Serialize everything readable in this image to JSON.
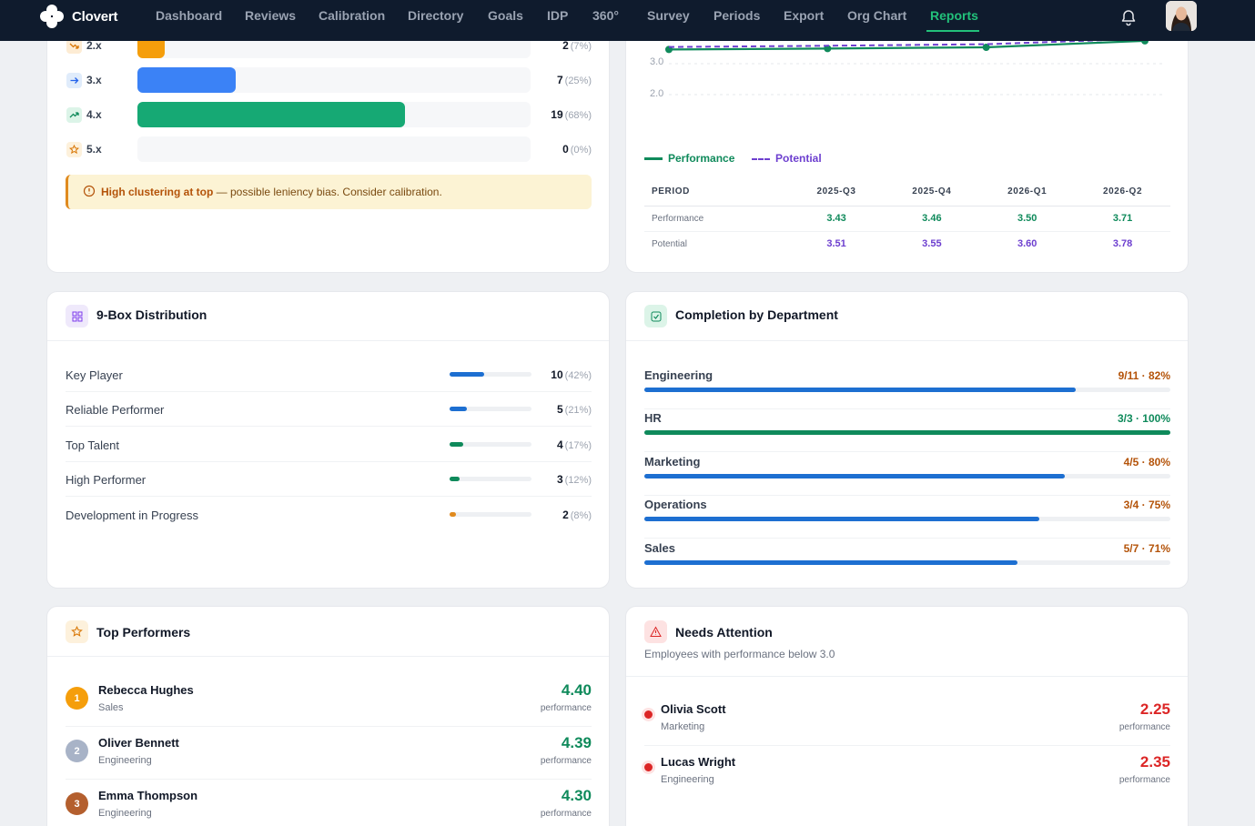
{
  "nav": {
    "brand": "Clovert",
    "items": [
      "Dashboard",
      "Reviews",
      "Calibration",
      "Directory",
      "Goals",
      "IDP",
      "360°",
      "Survey",
      "Periods",
      "Export",
      "Org Chart",
      "Reports"
    ],
    "active": "Reports"
  },
  "rating_distribution": {
    "rows": [
      {
        "label": "2.x",
        "count": "2",
        "pct": "(7%)",
        "fraction": 0.07,
        "color": "#f59e0b"
      },
      {
        "label": "3.x",
        "count": "7",
        "pct": "(25%)",
        "fraction": 0.25,
        "color": "#3b82f6"
      },
      {
        "label": "4.x",
        "count": "19",
        "pct": "(68%)",
        "fraction": 0.68,
        "color": "#16a974"
      },
      {
        "label": "5.x",
        "count": "0",
        "pct": "(0%)",
        "fraction": 0.0,
        "color": "#f59e0b"
      }
    ],
    "warning_bold": "High clustering at top",
    "warning_text": " — possible leniency bias. Consider calibration."
  },
  "trend": {
    "y_ticks": [
      "3.0",
      "2.0"
    ],
    "legend_performance": "Performance",
    "legend_potential": "Potential",
    "table_header": [
      "PERIOD",
      "2025-Q3",
      "2025-Q4",
      "2026-Q1",
      "2026-Q2"
    ],
    "row_performance_label": "Performance",
    "row_potential_label": "Potential",
    "performance": [
      "3.43",
      "3.46",
      "3.50",
      "3.71"
    ],
    "potential": [
      "3.51",
      "3.55",
      "3.60",
      "3.78"
    ]
  },
  "chart_data": {
    "type": "line",
    "x": [
      "2025-Q3",
      "2025-Q4",
      "2026-Q1",
      "2026-Q2"
    ],
    "series": [
      {
        "name": "Performance",
        "values": [
          3.43,
          3.46,
          3.5,
          3.71
        ]
      },
      {
        "name": "Potential",
        "values": [
          3.51,
          3.55,
          3.6,
          3.78
        ]
      }
    ],
    "y_ticks": [
      3.0,
      2.0
    ],
    "grid": true,
    "legend": "bottom-left"
  },
  "ninebox": {
    "title": "9-Box Distribution",
    "rows": [
      {
        "label": "Key Player",
        "count": "10",
        "pct": "(42%)",
        "fraction": 0.42,
        "color": "#1d6fd1"
      },
      {
        "label": "Reliable Performer",
        "count": "5",
        "pct": "(21%)",
        "fraction": 0.21,
        "color": "#1d6fd1"
      },
      {
        "label": "Top Talent",
        "count": "4",
        "pct": "(17%)",
        "fraction": 0.17,
        "color": "#0f8a5b"
      },
      {
        "label": "High Performer",
        "count": "3",
        "pct": "(12%)",
        "fraction": 0.12,
        "color": "#0f8a5b"
      },
      {
        "label": "Development in Progress",
        "count": "2",
        "pct": "(8%)",
        "fraction": 0.08,
        "color": "#e08a1e"
      }
    ]
  },
  "completion": {
    "title": "Completion by Department",
    "rows": [
      {
        "dept": "Engineering",
        "stat": "9/11 · 82%",
        "fraction": 0.82,
        "color": "#1d6fd1",
        "full": false
      },
      {
        "dept": "HR",
        "stat": "3/3 · 100%",
        "fraction": 1.0,
        "color": "#0f8a5b",
        "full": true
      },
      {
        "dept": "Marketing",
        "stat": "4/5 · 80%",
        "fraction": 0.8,
        "color": "#1d6fd1",
        "full": false
      },
      {
        "dept": "Operations",
        "stat": "3/4 · 75%",
        "fraction": 0.75,
        "color": "#1d6fd1",
        "full": false
      },
      {
        "dept": "Sales",
        "stat": "5/7 · 71%",
        "fraction": 0.71,
        "color": "#1d6fd1",
        "full": false
      }
    ]
  },
  "top_performers": {
    "title": "Top Performers",
    "unit": "performance",
    "rows": [
      {
        "rank": "1",
        "name": "Rebecca Hughes",
        "dept": "Sales",
        "score": "4.40",
        "color": "#f59e0b"
      },
      {
        "rank": "2",
        "name": "Oliver Bennett",
        "dept": "Engineering",
        "score": "4.39",
        "color": "#a8b3c7"
      },
      {
        "rank": "3",
        "name": "Emma Thompson",
        "dept": "Engineering",
        "score": "4.30",
        "color": "#b45f2e"
      }
    ]
  },
  "needs_attention": {
    "title": "Needs Attention",
    "subtitle": "Employees with performance below 3.0",
    "unit": "performance",
    "rows": [
      {
        "name": "Olivia Scott",
        "dept": "Marketing",
        "score": "2.25"
      },
      {
        "name": "Lucas Wright",
        "dept": "Engineering",
        "score": "2.35"
      }
    ]
  }
}
